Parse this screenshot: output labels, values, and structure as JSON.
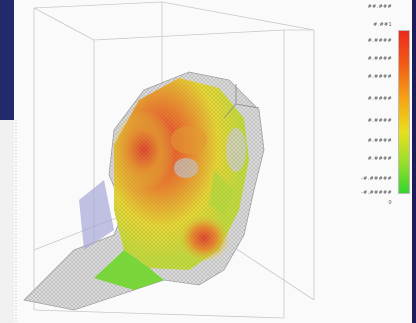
{
  "legend": {
    "labels": [
      "##.###",
      "#.##1",
      "#.####",
      "#.####",
      "#.####",
      "#.####",
      "#.####",
      "#.####",
      "#.####",
      "-#.#####",
      "-#.#####",
      "0"
    ]
  },
  "colors": {
    "frame": "#1c1c5a",
    "max": "#ee2a1c",
    "high": "#f7a314",
    "mid": "#e9df1c",
    "low": "#33d62c",
    "mesh": "#b8b8b8"
  },
  "icons": [
    "3d-head-model-icon"
  ]
}
